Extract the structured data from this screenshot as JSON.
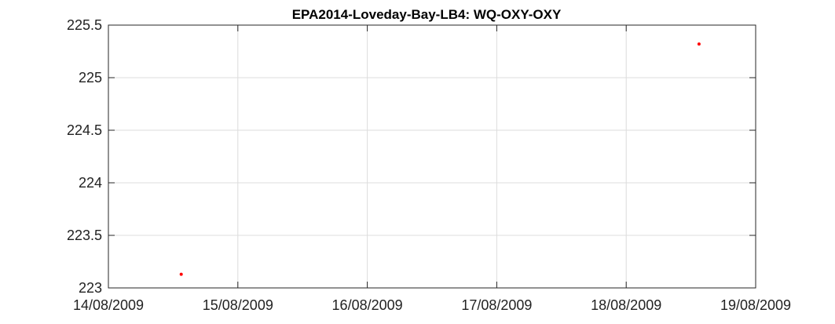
{
  "chart_data": {
    "type": "scatter",
    "title": "EPA2014-Loveday-Bay-LB4: WQ-OXY-OXY",
    "xlabel": "",
    "ylabel": "",
    "x_ticks": [
      "14/08/2009",
      "15/08/2009",
      "16/08/2009",
      "17/08/2009",
      "18/08/2009",
      "19/08/2009"
    ],
    "y_ticks": [
      "223",
      "223.5",
      "224",
      "224.5",
      "225",
      "225.5"
    ],
    "xlim": [
      "14/08/2009 00:00",
      "19/08/2009 00:00"
    ],
    "ylim": [
      223,
      225.5
    ],
    "grid": true,
    "series": [
      {
        "color": "#ff0000",
        "points": [
          {
            "x": "14/08/2009 13:30",
            "y": 223.13
          },
          {
            "x": "18/08/2009 13:30",
            "y": 225.32
          }
        ]
      }
    ]
  }
}
